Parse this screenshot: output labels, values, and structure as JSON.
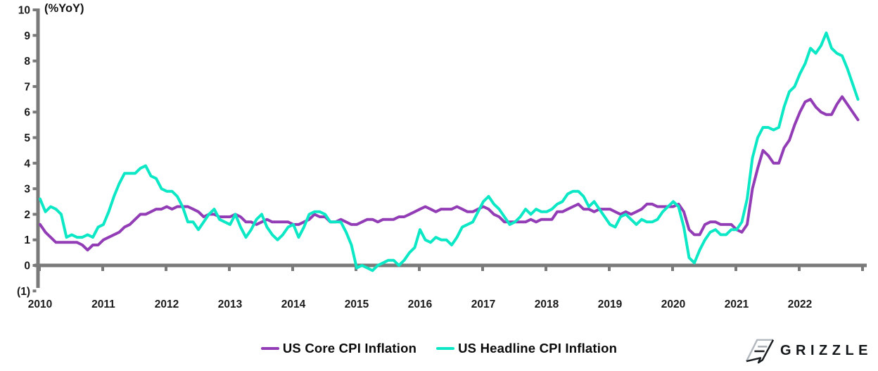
{
  "chart_data": {
    "type": "line",
    "title": "",
    "ylabel": "(%YoY)",
    "x_unit": "month",
    "x_start": "2010-01",
    "x_end": "2022-12",
    "ylim": [
      -1,
      10
    ],
    "grid": false,
    "legend_position": "bottom-center",
    "x_tick_labels": [
      "2010",
      "2011",
      "2012",
      "2013",
      "2014",
      "2015",
      "2016",
      "2017",
      "2018",
      "2019",
      "2020",
      "2021",
      "2022"
    ],
    "y_ticks": [
      {
        "value": 10,
        "label": "10"
      },
      {
        "value": 9,
        "label": "9"
      },
      {
        "value": 8,
        "label": "8"
      },
      {
        "value": 7,
        "label": "7"
      },
      {
        "value": 6,
        "label": "6"
      },
      {
        "value": 5,
        "label": "5"
      },
      {
        "value": 4,
        "label": "4"
      },
      {
        "value": 3,
        "label": "3"
      },
      {
        "value": 2,
        "label": "2"
      },
      {
        "value": 1,
        "label": "1"
      },
      {
        "value": 0,
        "label": "0"
      },
      {
        "value": -1,
        "label": "(1)"
      }
    ],
    "series": [
      {
        "id": "core-cpi-line",
        "name": "US Core CPI Inflation",
        "color": "#923cb5",
        "values": [
          1.6,
          1.3,
          1.1,
          0.9,
          0.9,
          0.9,
          0.9,
          0.9,
          0.8,
          0.6,
          0.8,
          0.8,
          1.0,
          1.1,
          1.2,
          1.3,
          1.5,
          1.6,
          1.8,
          2.0,
          2.0,
          2.1,
          2.2,
          2.2,
          2.3,
          2.2,
          2.3,
          2.3,
          2.3,
          2.2,
          2.1,
          1.9,
          2.0,
          2.0,
          1.9,
          1.9,
          1.9,
          2.0,
          1.9,
          1.7,
          1.7,
          1.6,
          1.7,
          1.8,
          1.7,
          1.7,
          1.7,
          1.7,
          1.6,
          1.6,
          1.7,
          1.8,
          2.0,
          1.9,
          1.9,
          1.7,
          1.7,
          1.8,
          1.7,
          1.6,
          1.6,
          1.7,
          1.8,
          1.8,
          1.7,
          1.8,
          1.8,
          1.8,
          1.9,
          1.9,
          2.0,
          2.1,
          2.2,
          2.3,
          2.2,
          2.1,
          2.2,
          2.2,
          2.2,
          2.3,
          2.2,
          2.1,
          2.1,
          2.2,
          2.3,
          2.2,
          2.0,
          1.9,
          1.7,
          1.7,
          1.7,
          1.7,
          1.7,
          1.8,
          1.7,
          1.8,
          1.8,
          1.8,
          2.1,
          2.1,
          2.2,
          2.3,
          2.4,
          2.2,
          2.2,
          2.1,
          2.2,
          2.2,
          2.2,
          2.1,
          2.0,
          2.1,
          2.0,
          2.1,
          2.2,
          2.4,
          2.4,
          2.3,
          2.3,
          2.3,
          2.3,
          2.4,
          2.1,
          1.4,
          1.2,
          1.2,
          1.6,
          1.7,
          1.7,
          1.6,
          1.6,
          1.6,
          1.4,
          1.3,
          1.6,
          3.0,
          3.8,
          4.5,
          4.3,
          4.0,
          4.0,
          4.6,
          4.9,
          5.5,
          6.0,
          6.4,
          6.5,
          6.2,
          6.0,
          5.9,
          5.9,
          6.3,
          6.6,
          6.3,
          6.0,
          5.7
        ]
      },
      {
        "id": "headline-cpi-line",
        "name": "US Headline CPI Inflation",
        "color": "#0ce8c5",
        "values": [
          2.6,
          2.1,
          2.3,
          2.2,
          2.0,
          1.1,
          1.2,
          1.1,
          1.1,
          1.2,
          1.1,
          1.5,
          1.6,
          2.1,
          2.7,
          3.2,
          3.6,
          3.6,
          3.6,
          3.8,
          3.9,
          3.5,
          3.4,
          3.0,
          2.9,
          2.9,
          2.7,
          2.3,
          1.7,
          1.7,
          1.4,
          1.7,
          2.0,
          2.2,
          1.8,
          1.7,
          1.6,
          2.0,
          1.5,
          1.1,
          1.4,
          1.8,
          2.0,
          1.5,
          1.2,
          1.0,
          1.2,
          1.5,
          1.6,
          1.1,
          1.5,
          2.0,
          2.1,
          2.1,
          2.0,
          1.7,
          1.7,
          1.7,
          1.3,
          0.8,
          -0.1,
          0.0,
          -0.1,
          -0.2,
          0.0,
          0.1,
          0.2,
          0.2,
          0.0,
          0.2,
          0.5,
          0.7,
          1.4,
          1.0,
          0.9,
          1.1,
          1.0,
          1.0,
          0.8,
          1.1,
          1.5,
          1.6,
          1.7,
          2.1,
          2.5,
          2.7,
          2.4,
          2.2,
          1.9,
          1.6,
          1.7,
          1.9,
          2.2,
          2.0,
          2.2,
          2.1,
          2.1,
          2.2,
          2.4,
          2.5,
          2.8,
          2.9,
          2.9,
          2.7,
          2.3,
          2.5,
          2.2,
          1.9,
          1.6,
          1.5,
          1.9,
          2.0,
          1.8,
          1.6,
          1.8,
          1.7,
          1.7,
          1.8,
          2.1,
          2.3,
          2.5,
          2.3,
          1.5,
          0.3,
          0.1,
          0.6,
          1.0,
          1.3,
          1.4,
          1.2,
          1.2,
          1.4,
          1.4,
          1.7,
          2.6,
          4.2,
          5.0,
          5.4,
          5.4,
          5.3,
          5.4,
          6.2,
          6.8,
          7.0,
          7.5,
          7.9,
          8.5,
          8.3,
          8.6,
          9.1,
          8.5,
          8.3,
          8.2,
          7.7,
          7.1,
          6.5
        ]
      }
    ],
    "axis_color": "#7a7a7a"
  },
  "branding": {
    "logo_text": "GRIZZLE"
  }
}
